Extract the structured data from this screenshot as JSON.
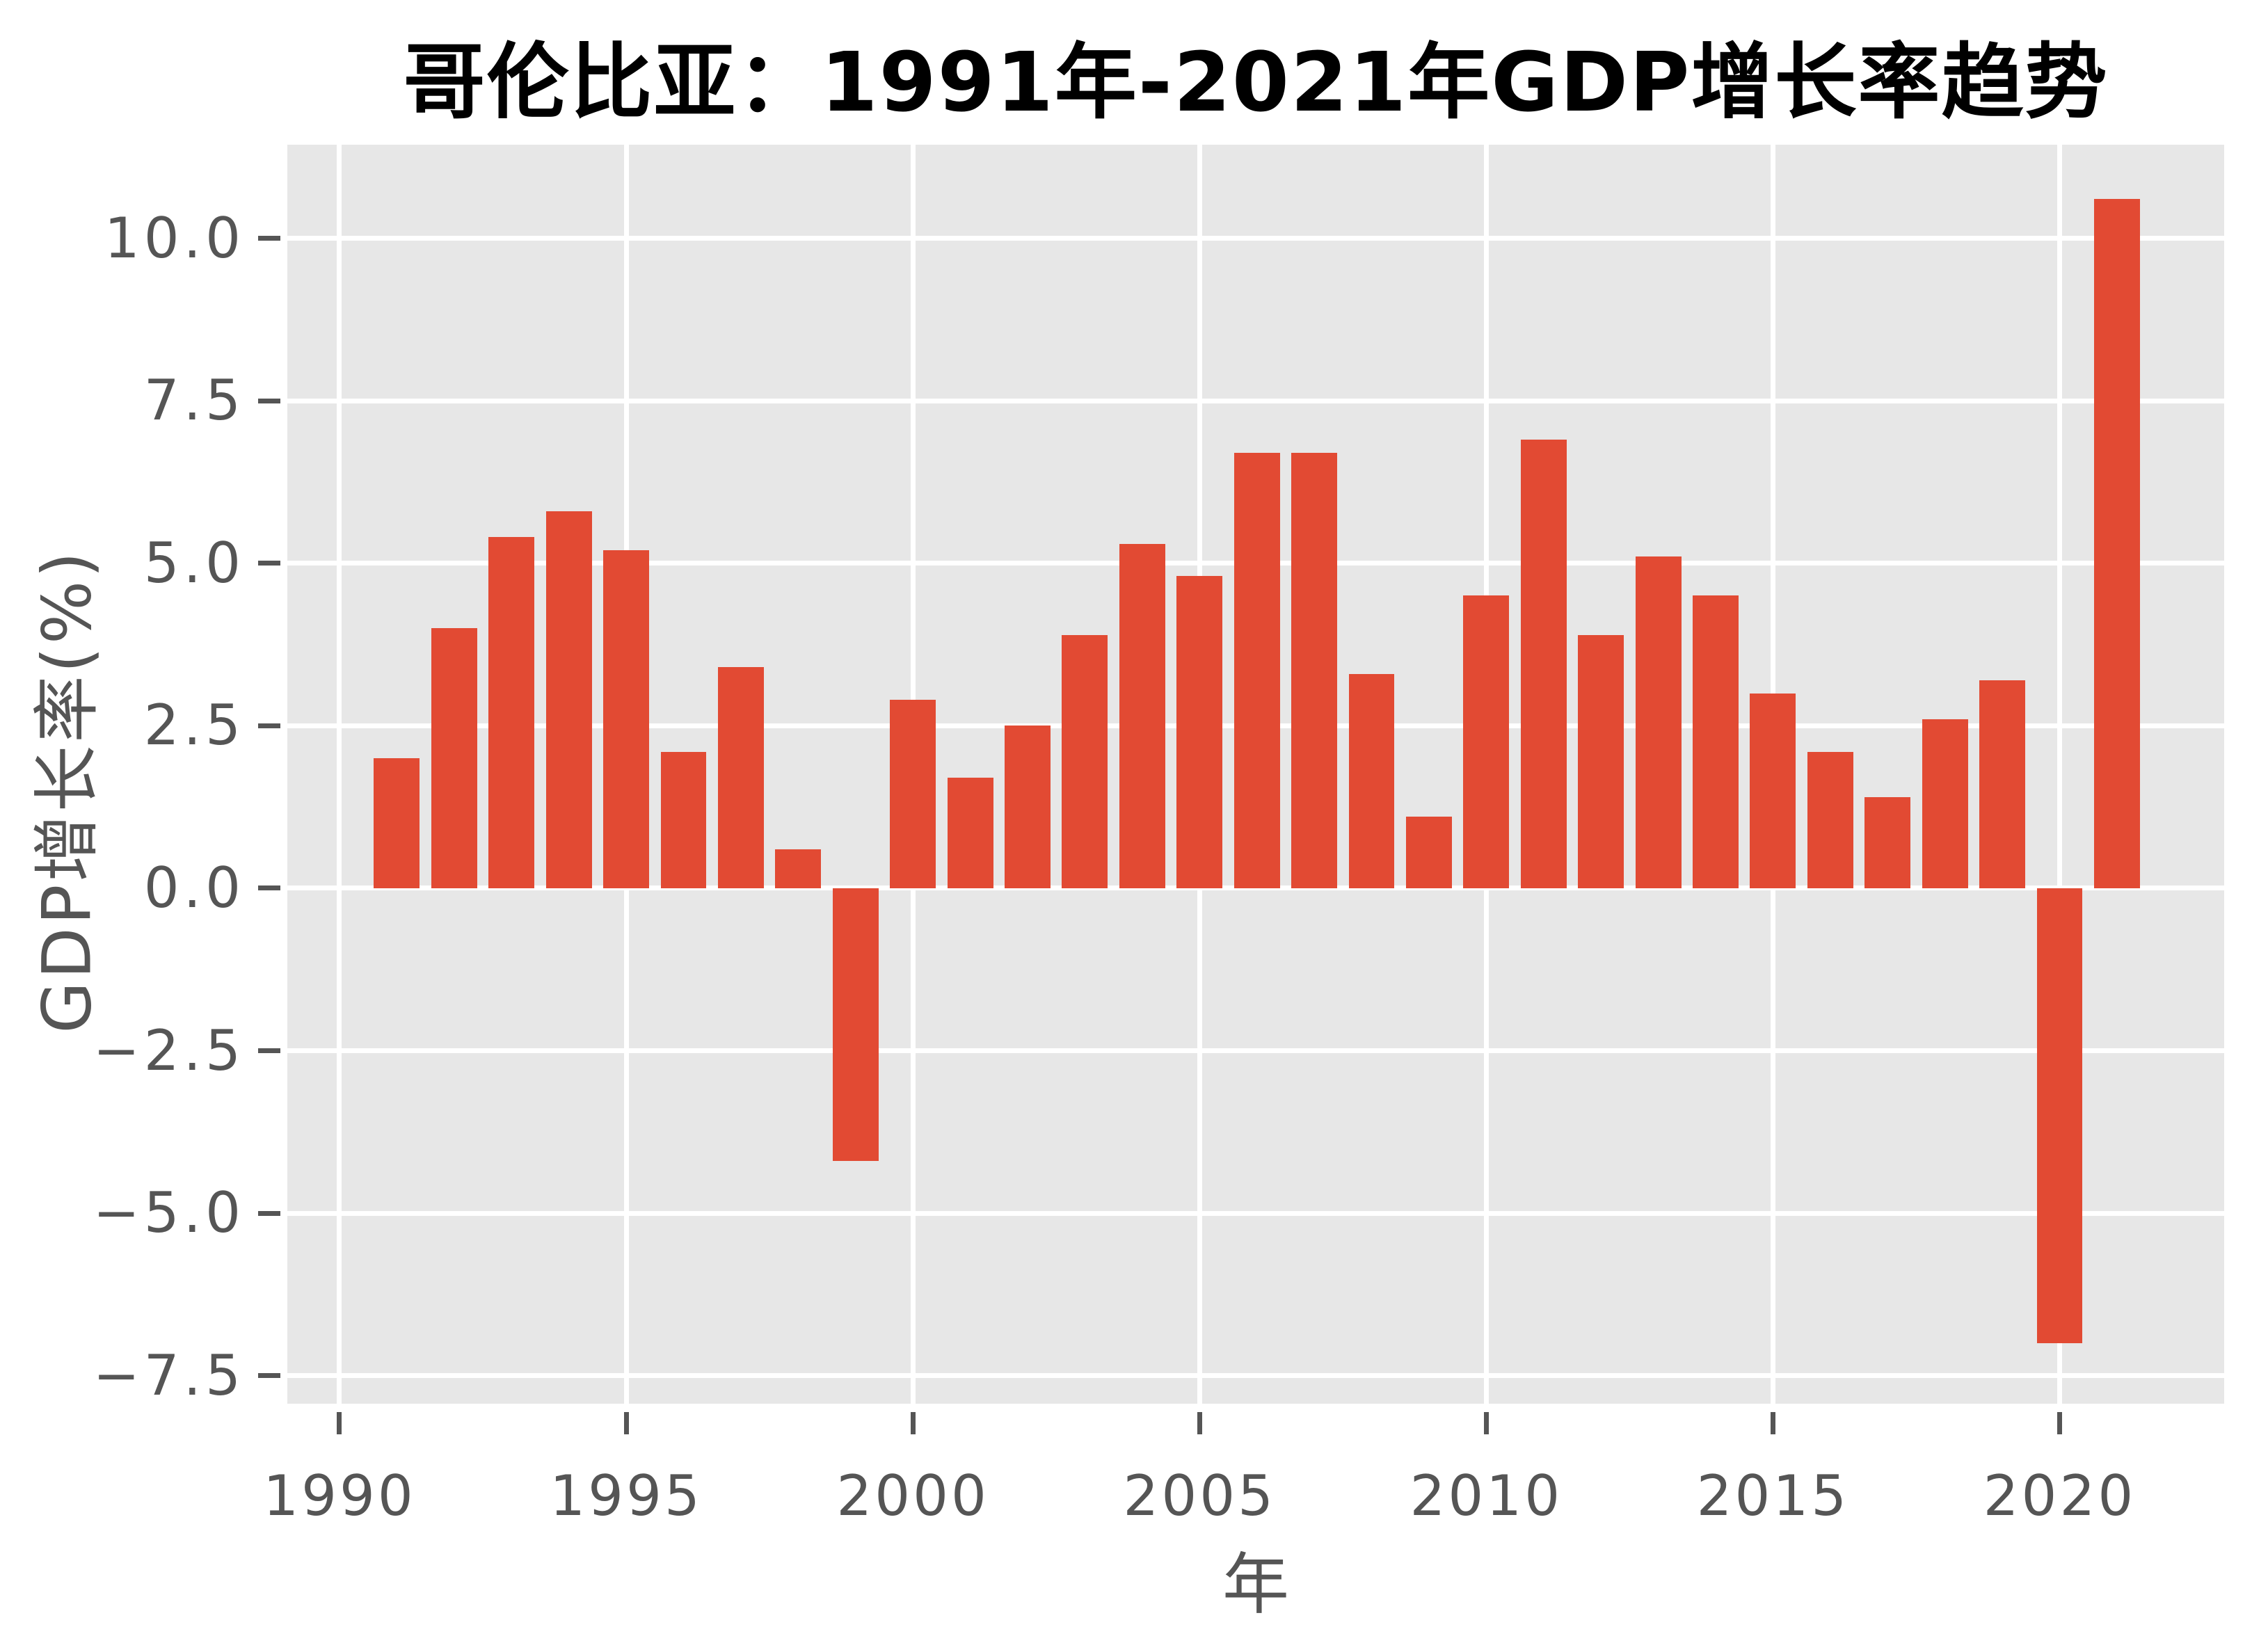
{
  "figure": {
    "background": "#FFFFFF",
    "plot_background": "#E7E7E7",
    "grid_color": "#FFFFFF",
    "bar_color": "#E24A33",
    "tick_text_color": "#555555",
    "title_color": "#000000"
  },
  "chart_data": {
    "type": "bar",
    "title": "哥伦比亚：1991年-2021年GDP增长率趋势",
    "xlabel": "年",
    "ylabel": "GDP增长率(%)",
    "categories": [
      1991,
      1992,
      1993,
      1994,
      1995,
      1996,
      1997,
      1998,
      1999,
      2000,
      2001,
      2002,
      2003,
      2004,
      2005,
      2006,
      2007,
      2008,
      2009,
      2010,
      2011,
      2012,
      2013,
      2014,
      2015,
      2016,
      2017,
      2018,
      2019,
      2020,
      2021
    ],
    "values": [
      2.0,
      4.0,
      5.4,
      5.8,
      5.2,
      2.1,
      3.4,
      0.6,
      -4.2,
      2.9,
      1.7,
      2.5,
      3.9,
      5.3,
      4.8,
      6.7,
      6.7,
      3.3,
      1.1,
      4.5,
      6.9,
      3.9,
      5.1,
      4.5,
      3.0,
      2.1,
      1.4,
      2.6,
      3.2,
      -7.0,
      10.6
    ],
    "xlim": [
      1989.09,
      2022.87
    ],
    "ylim": [
      -7.93,
      11.44
    ],
    "x_tick_values": [
      1990,
      1995,
      2000,
      2005,
      2010,
      2015,
      2020
    ],
    "x_tick_labels": [
      "1990",
      "1995",
      "2000",
      "2005",
      "2010",
      "2015",
      "2020"
    ],
    "y_tick_values": [
      10.0,
      7.5,
      5.0,
      2.5,
      0.0,
      -2.5,
      -5.0,
      -7.5
    ],
    "y_tick_labels": [
      "10.0",
      "7.5",
      "5.0",
      "2.5",
      "0.0",
      "−2.5",
      "−5.0",
      "−7.5"
    ],
    "bar_width": 0.8,
    "grid": true,
    "legend": null
  }
}
